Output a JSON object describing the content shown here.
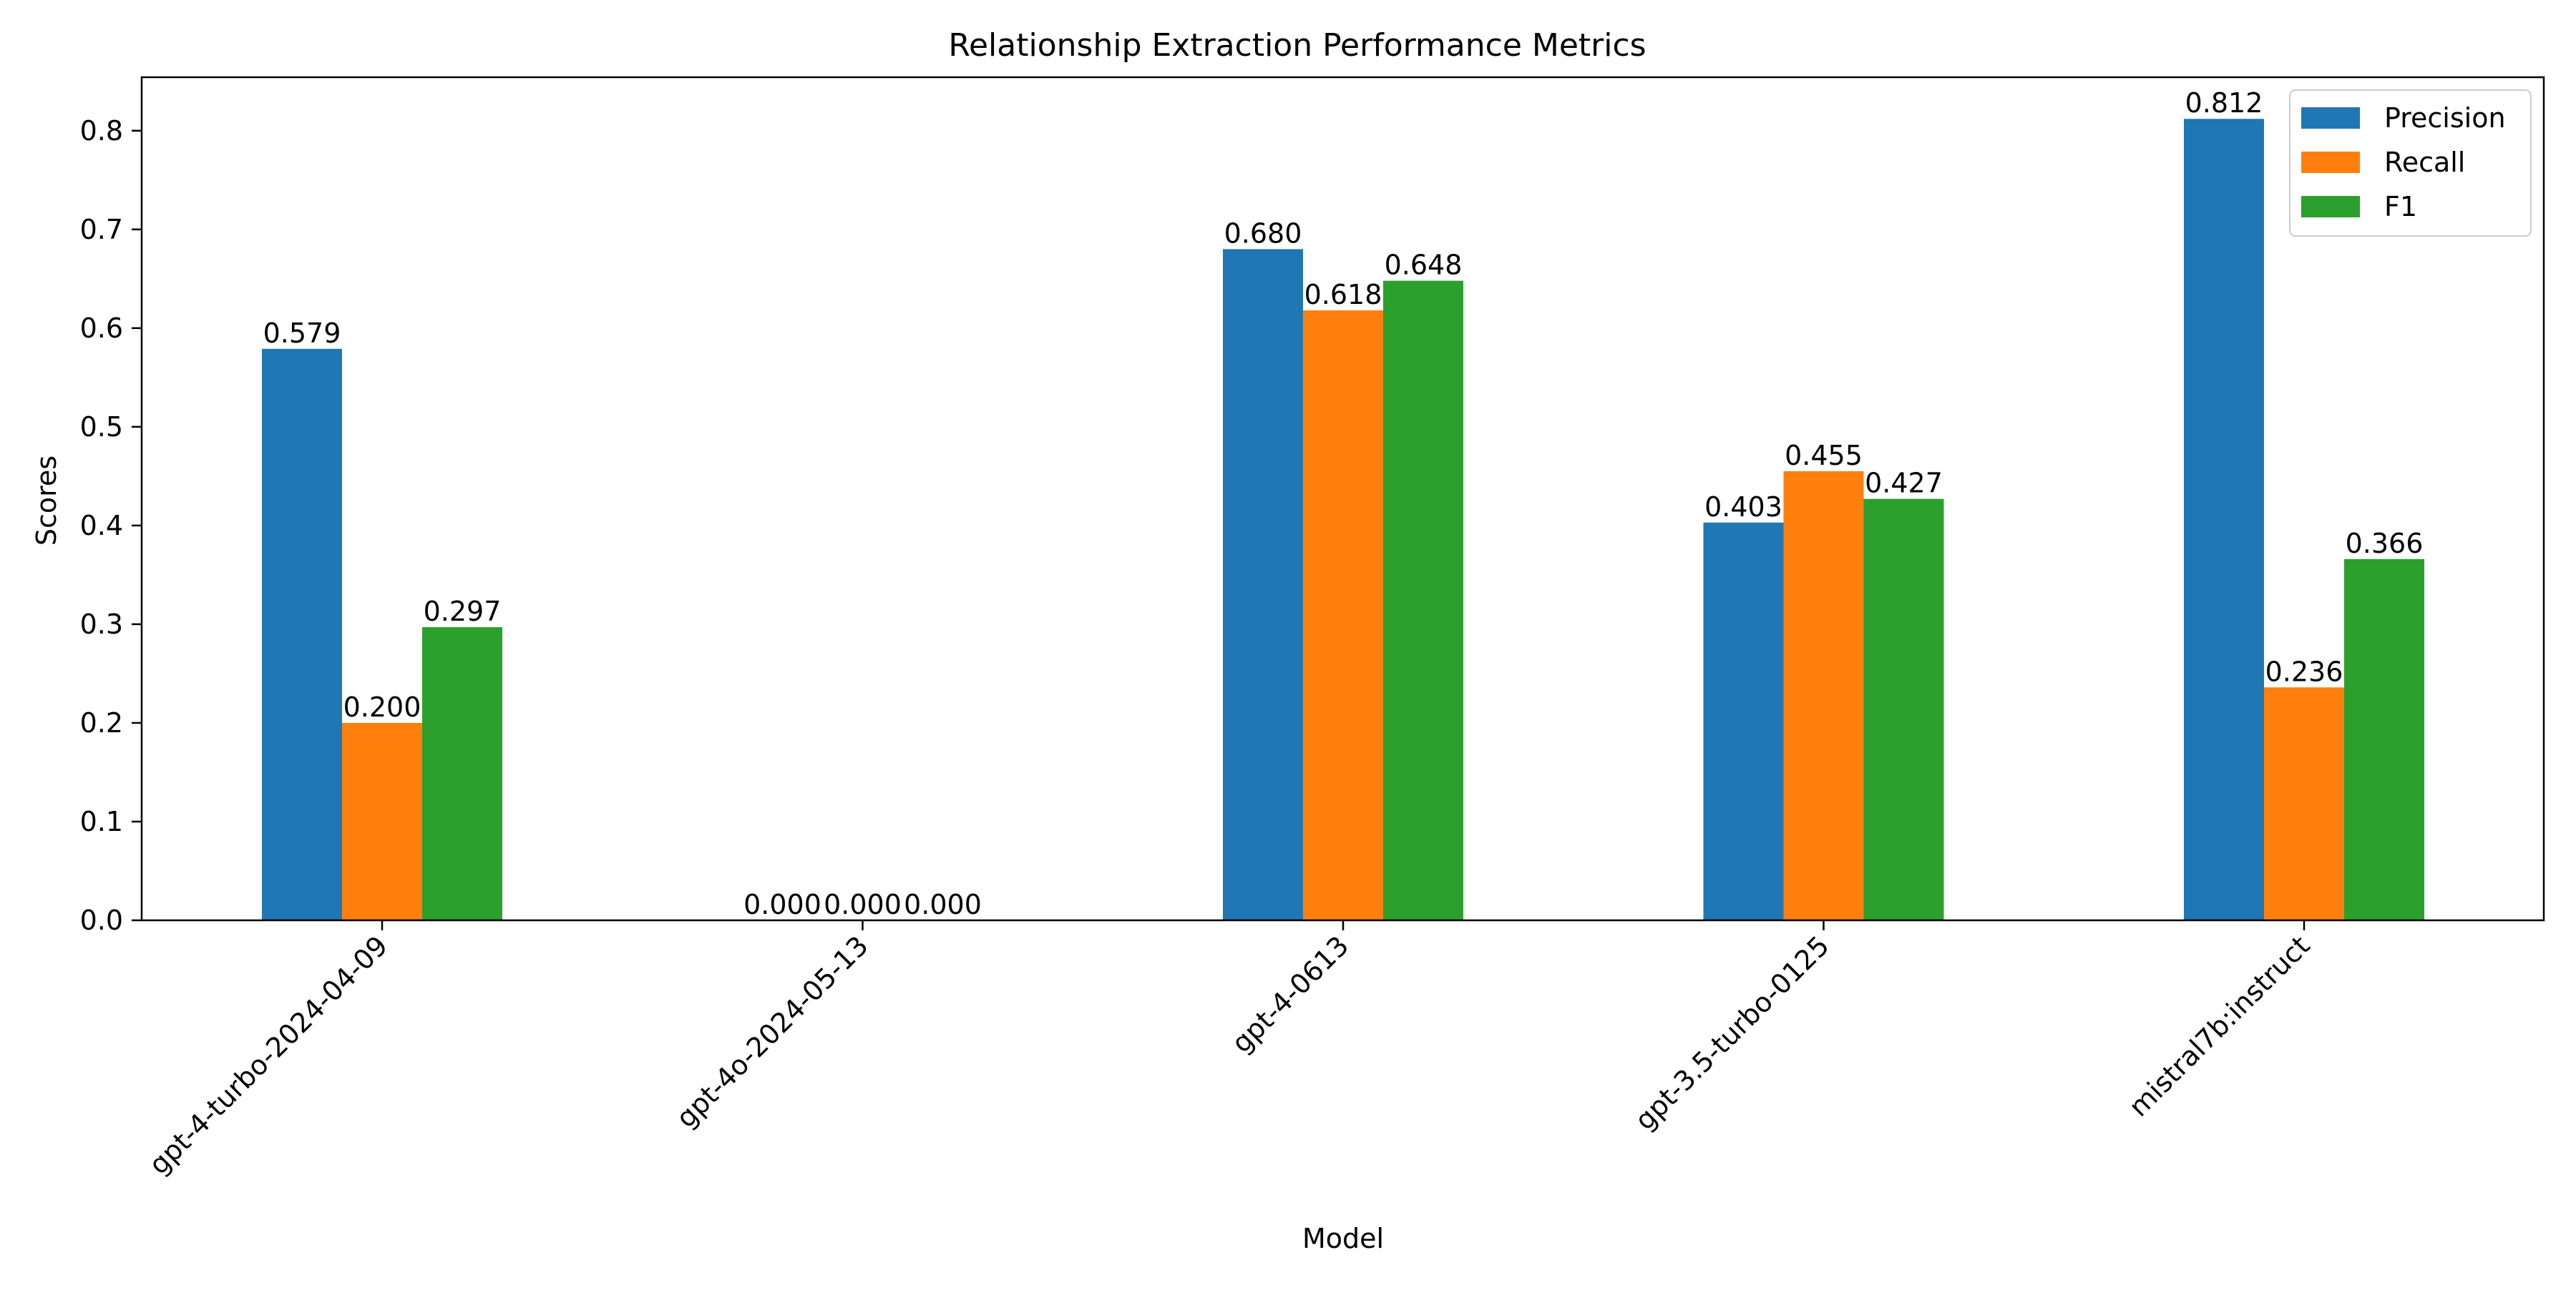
{
  "chart_data": {
    "type": "bar",
    "title": "Relationship Extraction Performance Metrics",
    "xlabel": "Model",
    "ylabel": "Scores",
    "categories": [
      "gpt-4-turbo-2024-04-09",
      "gpt-4o-2024-05-13",
      "gpt-4-0613",
      "gpt-3.5-turbo-0125",
      "mistral7b:instruct"
    ],
    "series": [
      {
        "name": "Precision",
        "color": "#1f77b4",
        "values": [
          0.579,
          0.0,
          0.68,
          0.403,
          0.812
        ],
        "labels": [
          "0.579",
          "0.000",
          "0.680",
          "0.403",
          "0.812"
        ]
      },
      {
        "name": "Recall",
        "color": "#ff7f0e",
        "values": [
          0.2,
          0.0,
          0.618,
          0.455,
          0.236
        ],
        "labels": [
          "0.200",
          "0.000",
          "0.618",
          "0.455",
          "0.236"
        ]
      },
      {
        "name": "F1",
        "color": "#2ca02c",
        "values": [
          0.297,
          0.0,
          0.648,
          0.427,
          0.366
        ],
        "labels": [
          "0.297",
          "0.000",
          "0.648",
          "0.427",
          "0.366"
        ]
      }
    ],
    "ylim": [
      0,
      0.855
    ],
    "yticks": [
      "0.0",
      "0.1",
      "0.2",
      "0.3",
      "0.4",
      "0.5",
      "0.6",
      "0.7",
      "0.8"
    ],
    "grid": false,
    "legend": "top-right",
    "data_labels": true
  }
}
